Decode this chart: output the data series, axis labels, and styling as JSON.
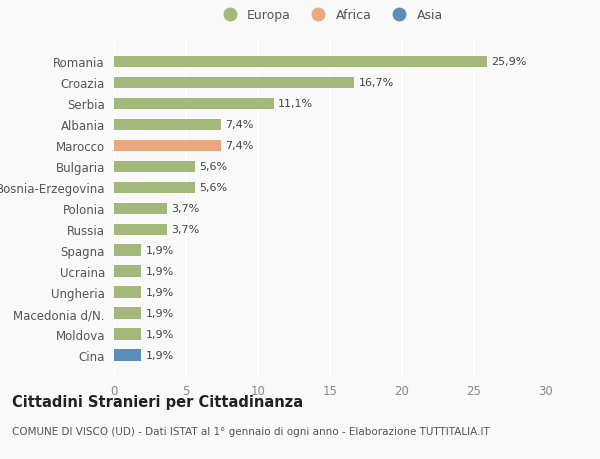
{
  "categories": [
    "Cina",
    "Moldova",
    "Macedonia d/N.",
    "Ungheria",
    "Ucraina",
    "Spagna",
    "Russia",
    "Polonia",
    "Bosnia-Erzegovina",
    "Bulgaria",
    "Marocco",
    "Albania",
    "Serbia",
    "Croazia",
    "Romania"
  ],
  "values": [
    1.9,
    1.9,
    1.9,
    1.9,
    1.9,
    1.9,
    3.7,
    3.7,
    5.6,
    5.6,
    7.4,
    7.4,
    11.1,
    16.7,
    25.9
  ],
  "labels": [
    "1,9%",
    "1,9%",
    "1,9%",
    "1,9%",
    "1,9%",
    "1,9%",
    "3,7%",
    "3,7%",
    "5,6%",
    "5,6%",
    "7,4%",
    "7,4%",
    "11,1%",
    "16,7%",
    "25,9%"
  ],
  "colors": [
    "#5b8db8",
    "#a3b97c",
    "#a3b97c",
    "#a3b97c",
    "#a3b97c",
    "#a3b97c",
    "#a3b97c",
    "#a3b97c",
    "#a3b97c",
    "#a3b97c",
    "#e8a97e",
    "#a3b97c",
    "#a3b97c",
    "#a3b97c",
    "#a3b97c"
  ],
  "legend_labels": [
    "Europa",
    "Africa",
    "Asia"
  ],
  "legend_colors": [
    "#a3b97c",
    "#e8a97e",
    "#5b8db8"
  ],
  "title": "Cittadini Stranieri per Cittadinanza",
  "subtitle": "COMUNE DI VISCO (UD) - Dati ISTAT al 1° gennaio di ogni anno - Elaborazione TUTTITALIA.IT",
  "xlim": [
    0,
    30
  ],
  "xticks": [
    0,
    5,
    10,
    15,
    20,
    25,
    30
  ],
  "background_color": "#f9f9f9",
  "grid_color": "#ffffff",
  "label_fontsize": 8,
  "tick_fontsize": 8.5,
  "title_fontsize": 10.5,
  "subtitle_fontsize": 7.5,
  "bar_height": 0.55
}
